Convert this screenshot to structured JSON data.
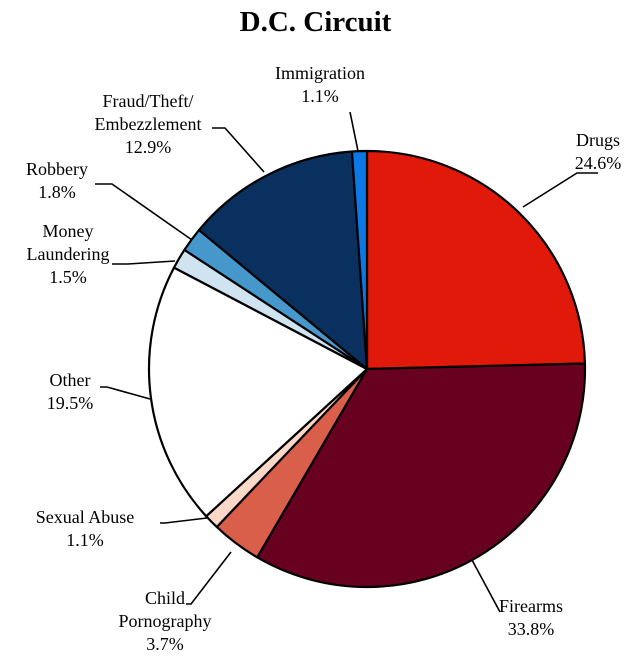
{
  "chart_data": {
    "type": "pie",
    "title": "D.C. Circuit",
    "slices": [
      {
        "label": "Drugs",
        "value": 24.6,
        "display": "24.6%",
        "color": "#e0190b"
      },
      {
        "label": "Firearms",
        "value": 33.8,
        "display": "33.8%",
        "color": "#680020"
      },
      {
        "label": "Child Pornography",
        "value": 3.7,
        "display": "3.7%",
        "color": "#d95f4a"
      },
      {
        "label": "Sexual Abuse",
        "value": 1.1,
        "display": "1.1%",
        "color": "#fbd8c8"
      },
      {
        "label": "Other",
        "value": 19.5,
        "display": "19.5%",
        "color": "#ffffff"
      },
      {
        "label": "Money Laundering",
        "value": 1.5,
        "display": "1.5%",
        "color": "#cfe3f1"
      },
      {
        "label": "Robbery",
        "value": 1.8,
        "display": "1.8%",
        "color": "#4698cc"
      },
      {
        "label": "Fraud/Theft/ Embezzlement",
        "value": 12.9,
        "display": "12.9%",
        "color": "#09305e"
      },
      {
        "label": "Immigration",
        "value": 1.1,
        "display": "1.1%",
        "color": "#0b78e6"
      }
    ]
  }
}
